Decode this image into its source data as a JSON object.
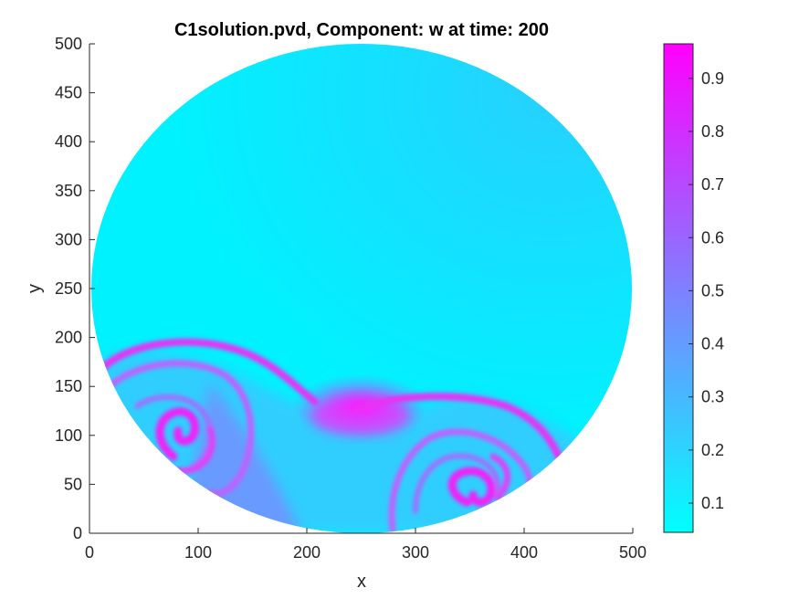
{
  "chart_data": {
    "type": "heatmap",
    "title": "C1solution.pvd, Component: w at time: 200",
    "xlabel": "x",
    "ylabel": "y",
    "xlim": [
      0,
      500
    ],
    "ylim": [
      0,
      500
    ],
    "x_ticks": [
      "0",
      "100",
      "200",
      "300",
      "400",
      "500"
    ],
    "y_ticks": [
      "0",
      "50",
      "100",
      "150",
      "200",
      "250",
      "300",
      "350",
      "400",
      "450",
      "500"
    ],
    "domain": {
      "shape": "circle",
      "center": [
        250,
        250
      ],
      "radius": 250
    },
    "colormap": {
      "name": "cool",
      "low": "#00ffff",
      "high": "#ff00ff"
    },
    "colorbar": {
      "min": 0.045,
      "max": 0.965,
      "ticks": [
        "0.1",
        "0.2",
        "0.3",
        "0.4",
        "0.5",
        "0.6",
        "0.7",
        "0.8",
        "0.9"
      ]
    },
    "features": [
      {
        "kind": "background",
        "value": 0.1
      },
      {
        "kind": "high-band",
        "description": "magenta ridge along spiral fronts",
        "value": 0.9
      },
      {
        "kind": "spiral-core",
        "center": [
          85,
          115
        ],
        "value": 0.85
      },
      {
        "kind": "spiral-core",
        "center": [
          335,
          55
        ],
        "value": 0.85
      },
      {
        "kind": "hot-spot",
        "center": [
          250,
          118
        ],
        "value": 0.95
      }
    ]
  }
}
